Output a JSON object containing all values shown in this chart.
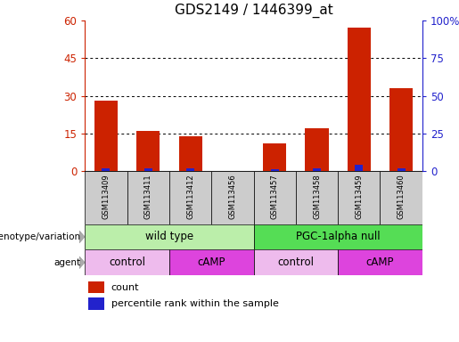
{
  "title": "GDS2149 / 1446399_at",
  "samples": [
    "GSM113409",
    "GSM113411",
    "GSM113412",
    "GSM113456",
    "GSM113457",
    "GSM113458",
    "GSM113459",
    "GSM113460"
  ],
  "count_values": [
    28,
    16,
    14,
    0,
    11,
    17,
    57,
    33
  ],
  "percentile_values": [
    2,
    2,
    2,
    0,
    1,
    2,
    4,
    2
  ],
  "ylim_left": [
    0,
    60
  ],
  "ylim_right": [
    0,
    100
  ],
  "yticks_left": [
    0,
    15,
    30,
    45,
    60
  ],
  "yticks_right": [
    0,
    25,
    50,
    75,
    100
  ],
  "ytick_labels_right": [
    "0",
    "25",
    "50",
    "75",
    "100%"
  ],
  "bar_color_count": "#cc2200",
  "bar_color_pct": "#2222cc",
  "bar_width": 0.55,
  "genotype_groups": [
    {
      "label": "wild type",
      "start": 0,
      "end": 4,
      "color": "#bbeeaa"
    },
    {
      "label": "PGC-1alpha null",
      "start": 4,
      "end": 8,
      "color": "#55dd55"
    }
  ],
  "agent_groups": [
    {
      "label": "control",
      "start": 0,
      "end": 2,
      "color": "#eebbed"
    },
    {
      "label": "cAMP",
      "start": 2,
      "end": 4,
      "color": "#dd44dd"
    },
    {
      "label": "control",
      "start": 4,
      "end": 6,
      "color": "#eebbed"
    },
    {
      "label": "cAMP",
      "start": 6,
      "end": 8,
      "color": "#dd44dd"
    }
  ],
  "legend_count_label": "count",
  "legend_pct_label": "percentile rank within the sample",
  "sample_area_color": "#cccccc",
  "label_genotype": "genotype/variation",
  "label_agent": "agent",
  "title_fontsize": 11,
  "axis_fontsize": 8.5,
  "tick_label_color_left": "#cc2200",
  "tick_label_color_right": "#2222cc"
}
